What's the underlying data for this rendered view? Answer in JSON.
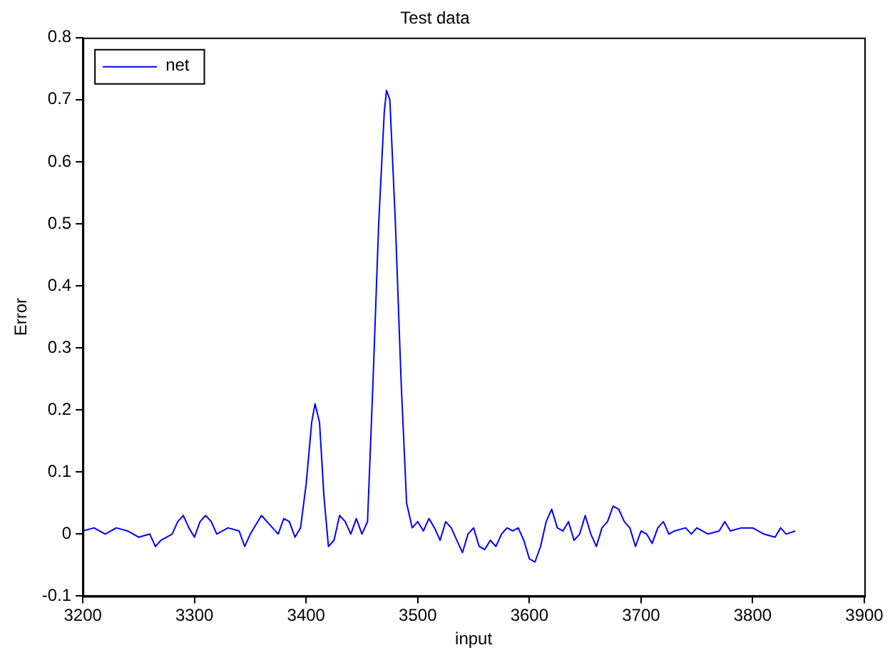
{
  "chart_data": {
    "type": "line",
    "title": "Test data",
    "xlabel": "input",
    "ylabel": "Error",
    "xlim": [
      3200,
      3900
    ],
    "xticks": [
      3200,
      3300,
      3400,
      3500,
      3600,
      3700,
      3800,
      3900
    ],
    "ylim": [
      -0.1,
      0.8
    ],
    "yticks": [
      -0.1,
      0,
      0.1,
      0.2,
      0.3,
      0.4,
      0.5,
      0.6,
      0.7,
      0.8
    ],
    "grid": false,
    "legend": "top left",
    "marker": "none",
    "line_style": "solid",
    "x": [
      3200,
      3210,
      3220,
      3230,
      3240,
      3250,
      3260,
      3265,
      3270,
      3280,
      3285,
      3290,
      3295,
      3300,
      3305,
      3310,
      3315,
      3320,
      3330,
      3340,
      3345,
      3350,
      3360,
      3365,
      3370,
      3375,
      3380,
      3385,
      3390,
      3395,
      3400,
      3405,
      3408,
      3412,
      3416,
      3420,
      3425,
      3430,
      3435,
      3440,
      3445,
      3450,
      3455,
      3460,
      3465,
      3470,
      3472,
      3475,
      3480,
      3485,
      3490,
      3495,
      3500,
      3505,
      3510,
      3515,
      3520,
      3525,
      3530,
      3535,
      3540,
      3545,
      3550,
      3555,
      3560,
      3565,
      3570,
      3575,
      3580,
      3585,
      3590,
      3595,
      3600,
      3605,
      3610,
      3615,
      3620,
      3625,
      3630,
      3635,
      3640,
      3645,
      3650,
      3655,
      3660,
      3665,
      3670,
      3675,
      3680,
      3685,
      3690,
      3695,
      3700,
      3705,
      3710,
      3715,
      3720,
      3725,
      3730,
      3740,
      3745,
      3750,
      3760,
      3770,
      3775,
      3780,
      3790,
      3800,
      3810,
      3820,
      3825,
      3830,
      3838
    ],
    "series": [
      {
        "name": "net",
        "color": "#0000ff",
        "values": [
          0.005,
          0.01,
          0.0,
          0.01,
          0.005,
          -0.005,
          0.0,
          -0.02,
          -0.01,
          0.0,
          0.02,
          0.03,
          0.01,
          -0.005,
          0.02,
          0.03,
          0.02,
          0.0,
          0.01,
          0.005,
          -0.02,
          0.0,
          0.03,
          0.02,
          0.01,
          0.0,
          0.025,
          0.02,
          -0.005,
          0.01,
          0.08,
          0.18,
          0.21,
          0.18,
          0.06,
          -0.02,
          -0.01,
          0.03,
          0.02,
          0.0,
          0.025,
          0.0,
          0.02,
          0.25,
          0.5,
          0.68,
          0.715,
          0.7,
          0.5,
          0.25,
          0.05,
          0.01,
          0.02,
          0.005,
          0.025,
          0.01,
          -0.01,
          0.02,
          0.01,
          -0.01,
          -0.03,
          0.0,
          0.01,
          -0.02,
          -0.025,
          -0.01,
          -0.02,
          0.0,
          0.01,
          0.005,
          0.01,
          -0.01,
          -0.04,
          -0.045,
          -0.02,
          0.02,
          0.04,
          0.01,
          0.005,
          0.02,
          -0.01,
          0.0,
          0.03,
          0.0,
          -0.02,
          0.01,
          0.02,
          0.045,
          0.04,
          0.02,
          0.01,
          -0.02,
          0.005,
          0.0,
          -0.015,
          0.01,
          0.02,
          0.0,
          0.005,
          0.01,
          0.0,
          0.01,
          0.0,
          0.005,
          0.02,
          0.005,
          0.01,
          0.01,
          0.0,
          -0.005,
          0.01,
          0.0,
          0.005
        ]
      }
    ]
  }
}
